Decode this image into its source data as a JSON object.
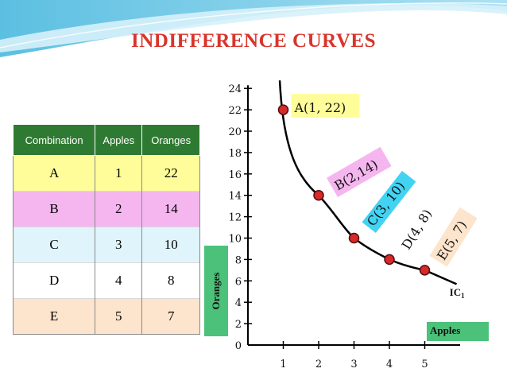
{
  "title": "INDIFFERENCE CURVES",
  "table": {
    "headers": [
      "Combination",
      "Apples",
      "Oranges"
    ],
    "rows": [
      {
        "combination": "A",
        "apples": "1",
        "oranges": "22",
        "color": "#fffd99"
      },
      {
        "combination": "B",
        "apples": "2",
        "oranges": "14",
        "color": "#f5b6f0"
      },
      {
        "combination": "C",
        "apples": "3",
        "oranges": "10",
        "color": "#dff5fb"
      },
      {
        "combination": "D",
        "apples": "4",
        "oranges": "8",
        "color": "#ffffff"
      },
      {
        "combination": "E",
        "apples": "5",
        "oranges": "7",
        "color": "#fde4cc"
      }
    ]
  },
  "chart_data": {
    "type": "line",
    "xlabel": "Apples",
    "ylabel": "Oranges",
    "curve_label": "IC",
    "curve_label_sub": "1",
    "x_ticks": [
      "1",
      "2",
      "3",
      "4",
      "5"
    ],
    "y_ticks": [
      "0",
      "2",
      "4",
      "6",
      "8",
      "10",
      "12",
      "14",
      "16",
      "18",
      "20",
      "22",
      "24"
    ],
    "xlim": [
      0,
      6
    ],
    "ylim": [
      0,
      24
    ],
    "points": [
      {
        "label": "A(1, 22)",
        "x": 1,
        "y": 22,
        "label_bg": "#fffd99"
      },
      {
        "label": "B(2,14)",
        "x": 2,
        "y": 14,
        "label_bg": "#f5b6f0"
      },
      {
        "label": "C(3, 10)",
        "x": 3,
        "y": 10,
        "label_bg": "#43d3f2"
      },
      {
        "label": "D(4, 8)",
        "x": 4,
        "y": 8,
        "label_bg": "#ffffff"
      },
      {
        "label": "E(5, 7)",
        "x": 5,
        "y": 7,
        "label_bg": "#fde4cc"
      }
    ],
    "marker_color": "#d62a2a",
    "axis_label_bg": "#4cc17a"
  }
}
